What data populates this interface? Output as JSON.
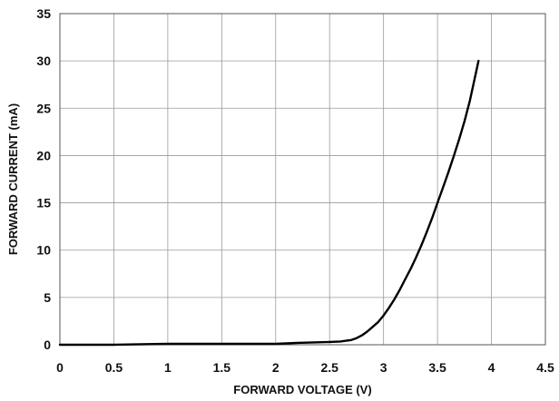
{
  "chart_data": {
    "type": "line",
    "title": "",
    "xlabel": "FORWARD VOLTAGE (V)",
    "ylabel": "FORWARD CURRENT (mA)",
    "xlim": [
      0,
      4.5
    ],
    "ylim": [
      0,
      35
    ],
    "x_ticks": [
      "0",
      "0.5",
      "1",
      "1.5",
      "2",
      "2.5",
      "3",
      "3.5",
      "4",
      "4.5"
    ],
    "y_ticks": [
      "0",
      "5",
      "10",
      "15",
      "20",
      "25",
      "30",
      "35"
    ],
    "grid": true,
    "series": [
      {
        "color": "#000000",
        "x": [
          0,
          0.5,
          1.0,
          1.5,
          2.0,
          2.2,
          2.5,
          2.6,
          2.7,
          2.75,
          2.8,
          2.85,
          2.9,
          2.95,
          3.0,
          3.05,
          3.1,
          3.15,
          3.2,
          3.25,
          3.3,
          3.35,
          3.4,
          3.45,
          3.5,
          3.55,
          3.6,
          3.65,
          3.7,
          3.75,
          3.8,
          3.85,
          3.88
        ],
        "y": [
          0,
          0,
          0.1,
          0.1,
          0.1,
          0.2,
          0.3,
          0.35,
          0.5,
          0.7,
          1.0,
          1.4,
          1.9,
          2.4,
          3.1,
          3.9,
          4.8,
          5.8,
          6.9,
          8.0,
          9.2,
          10.5,
          11.9,
          13.4,
          15.0,
          16.6,
          18.2,
          19.9,
          21.7,
          23.6,
          25.8,
          28.4,
          30.0
        ]
      }
    ]
  }
}
